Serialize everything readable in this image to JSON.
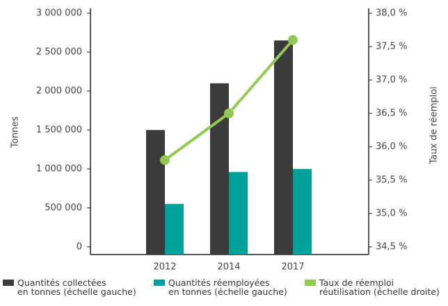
{
  "chart_data": {
    "type": "bar-line",
    "categories": [
      "2012",
      "2014",
      "2017"
    ],
    "series": [
      {
        "name": "Quantités collectées\nen tonnes (échelle gauche)",
        "color": "#3b3b3b",
        "type": "bar",
        "values": [
          1500000,
          2100000,
          2650000
        ]
      },
      {
        "name": "Quantités réemployées\nen tonnes (échelle gauche)",
        "color": "#00a19a",
        "type": "bar",
        "values": [
          550000,
          960000,
          1000000
        ]
      },
      {
        "name": "Taux de réemploi\nréutilisation (échelle droite)",
        "color": "#92c955",
        "type": "line",
        "axis": "y2",
        "values": [
          35.8,
          36.5,
          37.6
        ]
      }
    ],
    "ylabel": "Tonnes",
    "y2label": "Taux de réemploi",
    "ylim": [
      -100000,
      3000000
    ],
    "yticks": [
      0,
      {
        "value": 500000,
        "label": "500 000"
      },
      {
        "value": 1000000,
        "label": "1 000 000"
      },
      {
        "value": 1500000,
        "label": "1 500 000"
      },
      {
        "value": 2000000,
        "label": "2 000 000"
      },
      {
        "value": 2500000,
        "label": "2 500 000"
      },
      {
        "value": 3000000,
        "label": "3 000 000"
      }
    ],
    "y2lim": [
      34.385,
      38.0
    ],
    "y2ticks": [
      {
        "value": 34.5,
        "label": "34,5 %"
      },
      {
        "value": 35.0,
        "label": "35,0 %"
      },
      {
        "value": 35.5,
        "label": "35,5 %"
      },
      {
        "value": 36.0,
        "label": "36,0 %"
      },
      {
        "value": 36.5,
        "label": "36,5 %"
      },
      {
        "value": 37.0,
        "label": "37,0 %"
      },
      {
        "value": 37.5,
        "label": "37,5 %"
      },
      {
        "value": 38.0,
        "label": "38,0 %"
      }
    ],
    "legend": "bottom",
    "grid": false
  }
}
